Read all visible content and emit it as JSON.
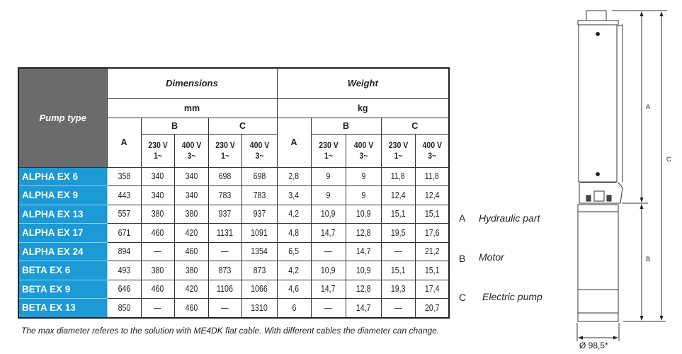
{
  "table": {
    "header": {
      "pump_type": "Pump type",
      "dimensions": "Dimensions",
      "weight": "Weight",
      "dim_unit": "mm",
      "weight_unit": "kg",
      "col_a": "A",
      "col_b": "B",
      "col_c": "C",
      "v230": "230 V",
      "v230_phase": "1~",
      "v400": "400 V",
      "v400_phase": "3~"
    },
    "rows": [
      {
        "name": "ALPHA EX 6",
        "v": [
          "358",
          "340",
          "340",
          "698",
          "698",
          "2,8",
          "9",
          "9",
          "11,8",
          "11,8"
        ]
      },
      {
        "name": "ALPHA EX 9",
        "v": [
          "443",
          "340",
          "340",
          "783",
          "783",
          "3,4",
          "9",
          "9",
          "12,4",
          "12,4"
        ]
      },
      {
        "name": "ALPHA EX 13",
        "v": [
          "557",
          "380",
          "380",
          "937",
          "937",
          "4,2",
          "10,9",
          "10,9",
          "15,1",
          "15,1"
        ]
      },
      {
        "name": "ALPHA EX 17",
        "v": [
          "671",
          "460",
          "420",
          "1131",
          "1091",
          "4,8",
          "14,7",
          "12,8",
          "19,5",
          "17,6"
        ]
      },
      {
        "name": "ALPHA EX 24",
        "v": [
          "894",
          "—",
          "460",
          "—",
          "1354",
          "6,5",
          "—",
          "14,7",
          "—",
          "21,2"
        ]
      },
      {
        "name": "BETA EX 6",
        "v": [
          "493",
          "380",
          "380",
          "873",
          "873",
          "4,2",
          "10,9",
          "10,9",
          "15,1",
          "15,1"
        ]
      },
      {
        "name": "BETA EX 9",
        "v": [
          "646",
          "460",
          "420",
          "1106",
          "1066",
          "4,6",
          "14,7",
          "12,8",
          "19,3",
          "17,4"
        ]
      },
      {
        "name": "BETA EX 13",
        "v": [
          "850",
          "—",
          "460",
          "—",
          "1310",
          "6",
          "—",
          "14,7",
          "—",
          "20,7"
        ]
      }
    ],
    "name_color": "#1b9ad6",
    "header_color": "#6b6b6b"
  },
  "note": "The max diameter referes to the solution with ME4DK flat cable. With different cables the diameter can change.",
  "legend": [
    {
      "key": "A",
      "label": "Hydraulic part"
    },
    {
      "key": "B",
      "label": "Motor"
    },
    {
      "key": "C",
      "label": "Electric pump"
    }
  ],
  "drawing": {
    "label_a": "A",
    "label_b": "B",
    "label_c": "C",
    "diameter": "Ø 98,5*"
  }
}
